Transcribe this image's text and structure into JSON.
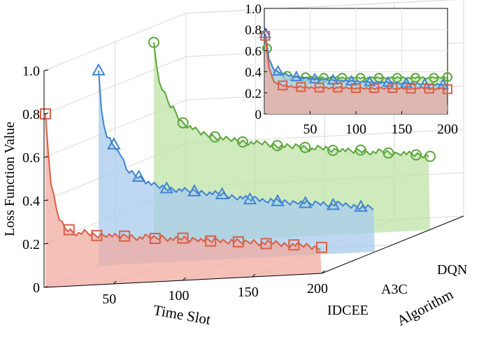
{
  "chart_data": {
    "type": "line",
    "subtype": "3d-waterfall-with-inset",
    "title": "",
    "xlabel": "Time Slot",
    "ylabel": "Algorithm",
    "zlabel": "Loss Function Value",
    "xlim": [
      1,
      200
    ],
    "zlim": [
      0,
      1.0
    ],
    "x_ticks": [
      "50",
      "100",
      "150",
      "200"
    ],
    "z_ticks": [
      "0",
      "0.2",
      "0.4",
      "0.6",
      "0.8",
      "1.0"
    ],
    "categories": [
      "IDCEE",
      "A3C",
      "DQN"
    ],
    "grid": true,
    "series": [
      {
        "name": "IDCEE",
        "color": "#d95f43",
        "fill": "#f0aba0",
        "marker": "square",
        "x": [
          1,
          3,
          5,
          8,
          10,
          12,
          15,
          18,
          20,
          25,
          30,
          35,
          40,
          45,
          50,
          55,
          60,
          65,
          70,
          75,
          80,
          85,
          90,
          95,
          100,
          105,
          110,
          115,
          120,
          125,
          130,
          135,
          140,
          145,
          150,
          155,
          160,
          165,
          170,
          175,
          180,
          185,
          190,
          195,
          200
        ],
        "values": [
          0.8,
          0.62,
          0.48,
          0.38,
          0.33,
          0.3,
          0.27,
          0.26,
          0.25,
          0.24,
          0.245,
          0.23,
          0.225,
          0.23,
          0.22,
          0.215,
          0.22,
          0.21,
          0.205,
          0.21,
          0.2,
          0.205,
          0.195,
          0.19,
          0.195,
          0.185,
          0.19,
          0.18,
          0.175,
          0.18,
          0.17,
          0.172,
          0.165,
          0.16,
          0.165,
          0.155,
          0.15,
          0.155,
          0.145,
          0.14,
          0.138,
          0.135,
          0.13,
          0.12,
          0.12
        ],
        "marker_x": [
          1,
          18,
          38,
          58,
          80,
          100,
          120,
          140,
          160,
          180,
          200
        ]
      },
      {
        "name": "A3C",
        "color": "#3f84d1",
        "fill": "#a8cbee",
        "marker": "triangle",
        "x": [
          1,
          3,
          5,
          7,
          9,
          11,
          13,
          15,
          18,
          20,
          25,
          30,
          35,
          40,
          45,
          50,
          55,
          60,
          65,
          70,
          75,
          80,
          85,
          90,
          95,
          100,
          105,
          110,
          115,
          120,
          125,
          130,
          135,
          140,
          145,
          150,
          155,
          160,
          165,
          170,
          175,
          180,
          185,
          190,
          195,
          200
        ],
        "values": [
          0.9,
          0.72,
          0.64,
          0.6,
          0.58,
          0.56,
          0.55,
          0.52,
          0.5,
          0.44,
          0.42,
          0.4,
          0.38,
          0.36,
          0.35,
          0.34,
          0.335,
          0.33,
          0.325,
          0.32,
          0.315,
          0.31,
          0.305,
          0.3,
          0.29,
          0.285,
          0.28,
          0.27,
          0.275,
          0.26,
          0.265,
          0.255,
          0.25,
          0.245,
          0.25,
          0.24,
          0.235,
          0.24,
          0.23,
          0.225,
          0.23,
          0.22,
          0.215,
          0.21,
          0.205,
          0.2
        ],
        "marker_x": [
          1,
          12,
          30,
          50,
          70,
          90,
          110,
          130,
          150,
          170,
          190
        ]
      },
      {
        "name": "DQN",
        "color": "#5ba63a",
        "fill": "#bfe3a7",
        "marker": "circle",
        "x": [
          1,
          3,
          5,
          8,
          10,
          12,
          15,
          18,
          20,
          25,
          30,
          35,
          40,
          45,
          50,
          55,
          60,
          65,
          70,
          75,
          80,
          85,
          90,
          95,
          100,
          105,
          110,
          115,
          120,
          125,
          130,
          135,
          140,
          145,
          150,
          155,
          160,
          165,
          170,
          175,
          180,
          185,
          190,
          195,
          200
        ],
        "values": [
          0.93,
          0.82,
          0.74,
          0.7,
          0.67,
          0.64,
          0.62,
          0.59,
          0.56,
          0.54,
          0.52,
          0.5,
          0.49,
          0.48,
          0.47,
          0.465,
          0.46,
          0.45,
          0.445,
          0.44,
          0.44,
          0.43,
          0.425,
          0.42,
          0.415,
          0.42,
          0.41,
          0.4,
          0.405,
          0.4,
          0.39,
          0.395,
          0.385,
          0.38,
          0.385,
          0.375,
          0.37,
          0.375,
          0.365,
          0.36,
          0.365,
          0.355,
          0.35,
          0.345,
          0.34
        ],
        "marker_x": [
          1,
          22,
          45,
          65,
          90,
          110,
          130,
          150,
          170,
          190,
          200
        ]
      }
    ],
    "inset": {
      "xlim": [
        0,
        200
      ],
      "ylim": [
        0,
        1.0
      ],
      "x_ticks": [
        "50",
        "100",
        "150",
        "200"
      ],
      "y_ticks": [
        "0",
        "0.2",
        "0.4",
        "0.6",
        "0.8",
        "1.0"
      ],
      "series": [
        {
          "name": "DQN",
          "color": "#5ba63a",
          "fill": "#bfe3a7",
          "marker": "circle",
          "x": [
            1,
            3,
            5,
            8,
            10,
            13,
            16,
            20,
            25,
            30,
            40,
            50,
            60,
            70,
            80,
            90,
            100,
            110,
            120,
            130,
            140,
            150,
            160,
            170,
            180,
            190,
            200
          ],
          "values": [
            0.7,
            0.62,
            0.5,
            0.46,
            0.42,
            0.4,
            0.38,
            0.37,
            0.36,
            0.355,
            0.35,
            0.345,
            0.345,
            0.34,
            0.345,
            0.34,
            0.345,
            0.34,
            0.34,
            0.345,
            0.34,
            0.345,
            0.34,
            0.345,
            0.34,
            0.345,
            0.35
          ],
          "marker_x": [
            3,
            25,
            45,
            65,
            85,
            105,
            125,
            145,
            165,
            185,
            200
          ]
        },
        {
          "name": "A3C",
          "color": "#3f84d1",
          "fill": "#a8cbee",
          "marker": "triangle",
          "x": [
            1,
            3,
            5,
            8,
            10,
            13,
            16,
            20,
            25,
            30,
            40,
            50,
            60,
            70,
            80,
            90,
            100,
            110,
            120,
            130,
            140,
            150,
            160,
            170,
            180,
            190,
            200
          ],
          "values": [
            0.76,
            0.66,
            0.52,
            0.46,
            0.43,
            0.41,
            0.4,
            0.38,
            0.37,
            0.36,
            0.34,
            0.33,
            0.33,
            0.32,
            0.32,
            0.31,
            0.31,
            0.305,
            0.3,
            0.3,
            0.295,
            0.29,
            0.29,
            0.285,
            0.28,
            0.28,
            0.275
          ],
          "marker_x": [
            1,
            15,
            35,
            55,
            75,
            95,
            115,
            135,
            155,
            175,
            195
          ]
        },
        {
          "name": "IDCEE",
          "color": "#d95f43",
          "fill": "#f0aba0",
          "marker": "square",
          "x": [
            1,
            3,
            5,
            8,
            10,
            13,
            16,
            20,
            25,
            30,
            40,
            50,
            60,
            70,
            80,
            90,
            100,
            110,
            120,
            130,
            140,
            150,
            160,
            170,
            180,
            190,
            200
          ],
          "values": [
            0.74,
            0.6,
            0.44,
            0.36,
            0.32,
            0.29,
            0.28,
            0.27,
            0.265,
            0.26,
            0.255,
            0.25,
            0.25,
            0.245,
            0.25,
            0.245,
            0.245,
            0.24,
            0.245,
            0.24,
            0.245,
            0.24,
            0.24,
            0.245,
            0.24,
            0.24,
            0.235
          ],
          "marker_x": [
            1,
            20,
            40,
            60,
            80,
            100,
            120,
            140,
            160,
            180,
            200
          ]
        }
      ]
    }
  }
}
